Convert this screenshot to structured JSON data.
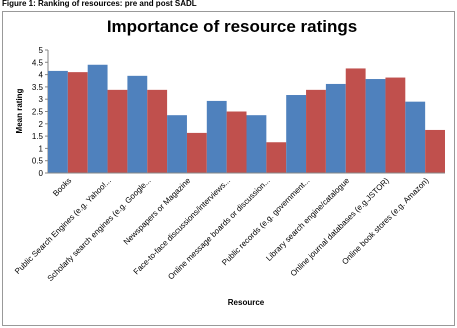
{
  "caption": "Figure 1: Ranking of resources: pre and post SADL",
  "chart_data": {
    "type": "bar",
    "title": "Importance of resource ratings",
    "x_label": "Resource",
    "y_label": "Mean rating",
    "categories": [
      "Books",
      "Public Search Engines (e.g. Yahoo!...",
      "Scholarly search engines (e.g. Google...",
      "Newspapers or Magazine",
      "Face-to-face discussions/interviews...",
      "Online message boards or discussion...",
      "Public records (e.g. government...",
      "Library search engine/catalogue",
      "Online journal databases (e.g.JSTOR)",
      "Online book stores (e.g. Amazon)"
    ],
    "series": [
      {
        "color": "#4f81bd",
        "values": [
          4.15,
          4.4,
          3.95,
          2.35,
          2.93,
          2.35,
          3.17,
          3.62,
          3.82,
          2.9
        ]
      },
      {
        "color": "#c0504d",
        "values": [
          4.1,
          3.38,
          3.38,
          1.63,
          2.5,
          1.25,
          3.38,
          4.25,
          3.88,
          1.75
        ]
      }
    ],
    "ylim": [
      0,
      5
    ],
    "yticks": [
      0,
      0.5,
      1,
      1.5,
      2,
      2.5,
      3,
      3.5,
      4,
      4.5,
      5
    ]
  }
}
